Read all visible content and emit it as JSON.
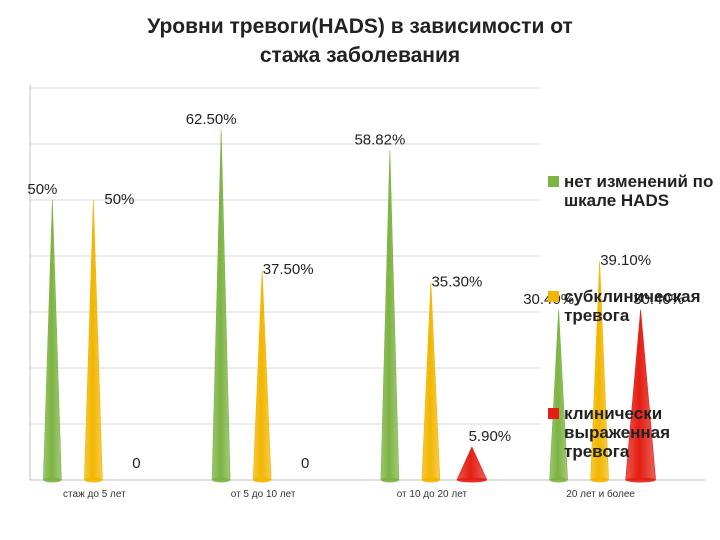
{
  "title": {
    "line1": "Уровни тревоги(HADS) в зависимости от",
    "line2": "стажа заболевания"
  },
  "colors": {
    "green": "#7cb342",
    "yellow": "#f2b600",
    "red": "#e41e13",
    "grid": "#d9d9d9"
  },
  "legend": [
    {
      "label": "нет изменений по шкале HADS",
      "color": "#7cb342"
    },
    {
      "label": "субклиническая тревога",
      "color": "#f2b600"
    },
    {
      "label": "клинически выраженная тревога",
      "color": "#e41e13"
    }
  ],
  "chart_data": {
    "type": "bar",
    "shape": "cone",
    "categories": [
      "стаж до 5 лет",
      "от 5 до 10 лет",
      "от 10 до 20 лет",
      "20 лет и более"
    ],
    "series": [
      {
        "name": "нет изменений по шкале HADS",
        "color": "#7cb342",
        "values": [
          50,
          62.5,
          58.82,
          30.4
        ],
        "labels": [
          "50%",
          "62.50%",
          "58.82%",
          "30.40%"
        ]
      },
      {
        "name": "субклиническая тревога",
        "color": "#f2b600",
        "values": [
          50,
          37.5,
          35.3,
          39.1
        ],
        "labels": [
          "50%",
          "37.50%",
          "35.30%",
          "39.10%"
        ]
      },
      {
        "name": "клинически выраженная тревога",
        "color": "#e41e13",
        "values": [
          0,
          0,
          5.9,
          30.4
        ],
        "labels": [
          "0",
          "0",
          "5.90%",
          "30.40%"
        ]
      }
    ],
    "ylim": [
      0,
      70
    ],
    "grid": true
  }
}
